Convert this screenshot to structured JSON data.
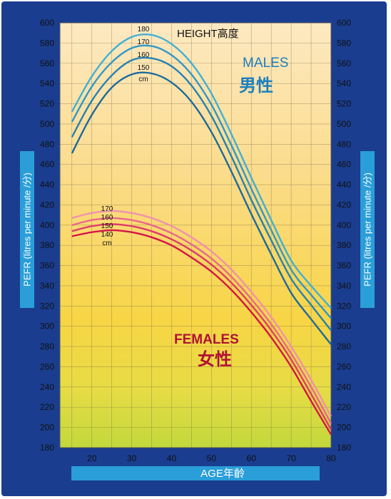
{
  "chart_data": {
    "type": "line",
    "title": "",
    "xlabel": "AGE年齡",
    "ylabel": "PEFR (litres per minute /分)",
    "xlim": [
      12,
      80
    ],
    "ylim": [
      180,
      600
    ],
    "xticks": [
      20,
      30,
      40,
      50,
      60,
      70,
      80
    ],
    "yticks": [
      180,
      200,
      220,
      240,
      260,
      280,
      300,
      320,
      340,
      360,
      380,
      400,
      420,
      440,
      460,
      480,
      500,
      520,
      540,
      560,
      580,
      600
    ],
    "grid": true,
    "height_legend_label": "HEIGHT高度",
    "males_label": "MALES",
    "males_label_cn": "男性",
    "females_label": "FEMALES",
    "females_label_cn": "女性",
    "male_height_labels": [
      "180",
      "170",
      "160",
      "150",
      "cm"
    ],
    "female_height_labels": [
      "170",
      "160",
      "150",
      "140",
      "cm"
    ],
    "colors": {
      "males": [
        "#3fb0d8",
        "#3098c8",
        "#2682b4",
        "#1d6a9c"
      ],
      "females": [
        "#f090b0",
        "#e86890",
        "#e03a6a",
        "#d41447"
      ]
    },
    "x": [
      15,
      20,
      25,
      30,
      35,
      40,
      45,
      50,
      55,
      60,
      65,
      70,
      75,
      80
    ],
    "series_males": [
      {
        "values": [
          512,
          547,
          572,
          586,
          588,
          579,
          560,
          530,
          490,
          447,
          405,
          365,
          340,
          318
        ]
      },
      {
        "values": [
          502,
          537,
          561,
          575,
          577,
          568,
          549,
          519,
          479,
          436,
          395,
          356,
          331,
          308
        ]
      },
      {
        "values": [
          487,
          523,
          548,
          563,
          565,
          557,
          538,
          508,
          468,
          425,
          385,
          347,
          321,
          296
        ]
      },
      {
        "values": [
          471,
          509,
          536,
          549,
          550,
          541,
          522,
          492,
          453,
          411,
          371,
          333,
          307,
          282
        ]
      }
    ],
    "series_females": [
      {
        "values": [
          407,
          412,
          414,
          412,
          407,
          399,
          388,
          374,
          356,
          334,
          309,
          280,
          247,
          211
        ]
      },
      {
        "values": [
          400,
          405,
          407,
          405,
          400,
          392,
          381,
          367,
          349,
          327,
          302,
          273,
          240,
          204
        ]
      },
      {
        "values": [
          394,
          399,
          401,
          399,
          394,
          386,
          375,
          361,
          343,
          321,
          296,
          267,
          233,
          198
        ]
      },
      {
        "values": [
          389,
          393,
          395,
          393,
          388,
          380,
          368,
          354,
          336,
          314,
          289,
          260,
          226,
          193
        ]
      }
    ]
  }
}
